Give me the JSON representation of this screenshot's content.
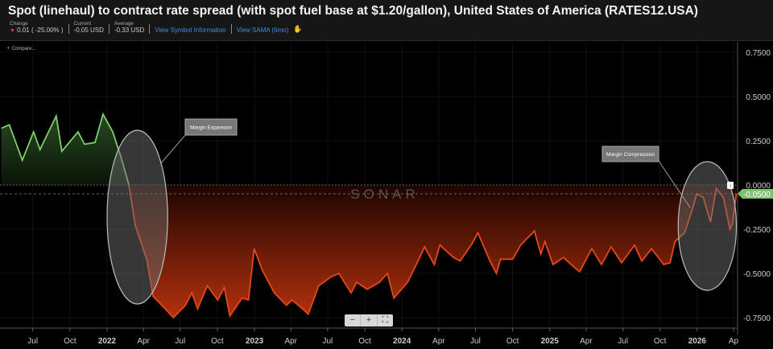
{
  "header": {
    "title": "Spot (linehaul) to contract rate spread (with spot fuel base at $1.20/gallon), United States of America (RATES12.USA)",
    "change_label": "Change",
    "change_value": "0.01 ( -25.00% )",
    "current_label": "Current",
    "current_value": "-0.05 USD",
    "average_label": "Average",
    "average_value": "-0.33 USD",
    "link_symbol_info": "View Symbol Information",
    "link_sama": "View SAMA (6mo)",
    "compare_label": "Compare..."
  },
  "watermark": "SONAR",
  "zoom_controls": {
    "minus": "−",
    "plus": "+",
    "fullscreen": "⛶"
  },
  "colors": {
    "positive": "#7ccf6a",
    "negative": "#e8461c",
    "current_tag": "#7cc36a"
  },
  "chart_data": {
    "type": "area",
    "ylim": [
      -0.8,
      0.8
    ],
    "yticks": [
      "0.7500",
      "0.5000",
      "0.2500",
      "0.0000",
      "-0.2500",
      "-0.5000",
      "-0.7500"
    ],
    "ytick_values": [
      0.75,
      0.5,
      0.25,
      0,
      -0.25,
      -0.5,
      -0.75
    ],
    "xticks": [
      {
        "label": "Jul",
        "date": "2021-07-01"
      },
      {
        "label": "Oct",
        "date": "2021-10-01"
      },
      {
        "label": "2022",
        "date": "2022-01-01"
      },
      {
        "label": "Apr",
        "date": "2022-04-01"
      },
      {
        "label": "Jul",
        "date": "2022-07-01"
      },
      {
        "label": "Oct",
        "date": "2022-10-01"
      },
      {
        "label": "2023",
        "date": "2023-01-01"
      },
      {
        "label": "Apr",
        "date": "2023-04-01"
      },
      {
        "label": "Jul",
        "date": "2023-07-01"
      },
      {
        "label": "Oct",
        "date": "2023-10-01"
      },
      {
        "label": "2024",
        "date": "2024-01-01"
      },
      {
        "label": "Apr",
        "date": "2024-04-01"
      },
      {
        "label": "Jul",
        "date": "2024-07-01"
      },
      {
        "label": "Oct",
        "date": "2024-10-01"
      },
      {
        "label": "2025",
        "date": "2025-01-01"
      },
      {
        "label": "Apr",
        "date": "2025-04-01"
      },
      {
        "label": "Jul",
        "date": "2025-07-01"
      },
      {
        "label": "Oct",
        "date": "2025-10-01"
      },
      {
        "label": "2026",
        "date": "2026-01-01"
      },
      {
        "label": "Ap",
        "date": "2026-04-01"
      }
    ],
    "current_value_label": "-0.0500",
    "current_value": -0.05,
    "reference_line": 0,
    "grid": true,
    "annotations": [
      {
        "text": "Margin Expansion",
        "period": [
          "2022-01-01",
          "2022-05-31"
        ]
      },
      {
        "text": "Margin Compression",
        "period": [
          "2025-11-15",
          "2026-04-08"
        ]
      }
    ],
    "series": [
      {
        "points": [
          [
            "2021-04-14",
            0.32
          ],
          [
            "2021-05-04",
            0.34
          ],
          [
            "2021-06-05",
            0.14
          ],
          [
            "2021-07-03",
            0.3
          ],
          [
            "2021-07-19",
            0.2
          ],
          [
            "2021-08-28",
            0.39
          ],
          [
            "2021-09-11",
            0.19
          ],
          [
            "2021-10-21",
            0.3
          ],
          [
            "2021-11-06",
            0.23
          ],
          [
            "2021-12-02",
            0.24
          ],
          [
            "2021-12-22",
            0.4
          ],
          [
            "2022-01-15",
            0.3
          ],
          [
            "2022-02-04",
            0.16
          ],
          [
            "2022-02-24",
            0.0
          ],
          [
            "2022-03-12",
            -0.23
          ],
          [
            "2022-04-09",
            -0.42
          ],
          [
            "2022-04-25",
            -0.63
          ],
          [
            "2022-05-25",
            -0.7
          ],
          [
            "2022-06-14",
            -0.75
          ],
          [
            "2022-07-14",
            -0.68
          ],
          [
            "2022-07-30",
            -0.61
          ],
          [
            "2022-08-13",
            -0.7
          ],
          [
            "2022-09-06",
            -0.57
          ],
          [
            "2022-10-02",
            -0.65
          ],
          [
            "2022-10-18",
            -0.58
          ],
          [
            "2022-11-01",
            -0.74
          ],
          [
            "2022-12-01",
            -0.64
          ],
          [
            "2022-12-17",
            -0.65
          ],
          [
            "2022-12-31",
            -0.36
          ],
          [
            "2023-01-20",
            -0.48
          ],
          [
            "2023-02-19",
            -0.61
          ],
          [
            "2023-03-21",
            -0.68
          ],
          [
            "2023-04-04",
            -0.65
          ],
          [
            "2023-04-30",
            -0.7
          ],
          [
            "2023-05-14",
            -0.73
          ],
          [
            "2023-06-09",
            -0.57
          ],
          [
            "2023-07-09",
            -0.52
          ],
          [
            "2023-07-29",
            -0.5
          ],
          [
            "2023-08-28",
            -0.61
          ],
          [
            "2023-09-11",
            -0.55
          ],
          [
            "2023-10-07",
            -0.59
          ],
          [
            "2023-11-06",
            -0.55
          ],
          [
            "2023-11-26",
            -0.5
          ],
          [
            "2023-12-12",
            -0.64
          ],
          [
            "2024-01-15",
            -0.55
          ],
          [
            "2024-02-14",
            -0.41
          ],
          [
            "2024-02-26",
            -0.35
          ],
          [
            "2024-03-21",
            -0.45
          ],
          [
            "2024-04-04",
            -0.34
          ],
          [
            "2024-05-08",
            -0.41
          ],
          [
            "2024-05-24",
            -0.43
          ],
          [
            "2024-06-23",
            -0.33
          ],
          [
            "2024-07-07",
            -0.27
          ],
          [
            "2024-08-06",
            -0.43
          ],
          [
            "2024-08-22",
            -0.5
          ],
          [
            "2024-09-01",
            -0.42
          ],
          [
            "2024-10-01",
            -0.42
          ],
          [
            "2024-10-21",
            -0.34
          ],
          [
            "2024-11-24",
            -0.26
          ],
          [
            "2024-12-10",
            -0.39
          ],
          [
            "2024-12-20",
            -0.32
          ],
          [
            "2025-01-09",
            -0.45
          ],
          [
            "2025-02-04",
            -0.41
          ],
          [
            "2025-02-28",
            -0.46
          ],
          [
            "2025-03-16",
            -0.49
          ],
          [
            "2025-04-15",
            -0.36
          ],
          [
            "2025-05-09",
            -0.45
          ],
          [
            "2025-06-02",
            -0.35
          ],
          [
            "2025-06-28",
            -0.44
          ],
          [
            "2025-07-30",
            -0.34
          ],
          [
            "2025-08-17",
            -0.43
          ],
          [
            "2025-09-10",
            -0.36
          ],
          [
            "2025-10-10",
            -0.45
          ],
          [
            "2025-10-26",
            -0.44
          ],
          [
            "2025-11-07",
            -0.32
          ],
          [
            "2025-12-01",
            -0.27
          ],
          [
            "2025-12-21",
            -0.13
          ],
          [
            "2025-12-31",
            -0.05
          ],
          [
            "2026-01-16",
            -0.07
          ],
          [
            "2026-02-03",
            -0.21
          ],
          [
            "2026-02-17",
            -0.02
          ],
          [
            "2026-03-07",
            -0.07
          ],
          [
            "2026-03-23",
            -0.25
          ],
          [
            "2026-03-29",
            -0.22
          ],
          [
            "2026-04-08",
            -0.05
          ]
        ]
      }
    ]
  }
}
